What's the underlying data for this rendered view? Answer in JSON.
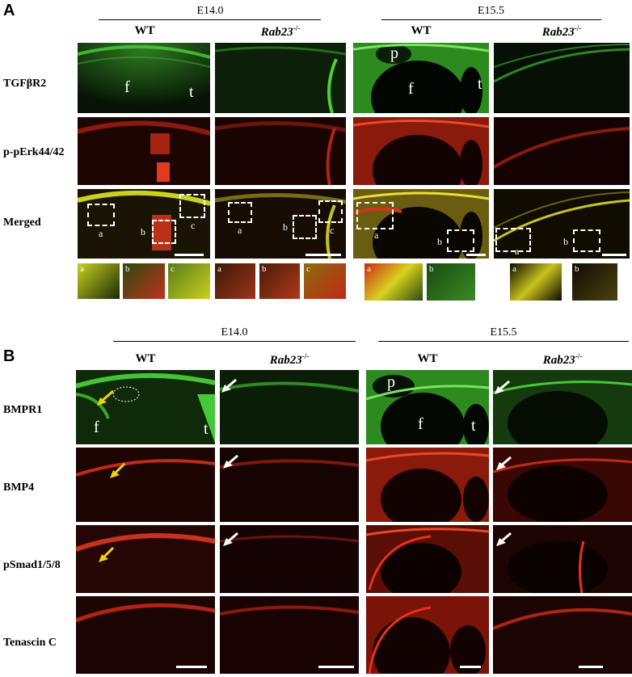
{
  "panelA": {
    "letter": "A",
    "groups": [
      {
        "title": "E14.0"
      },
      {
        "title": "E15.5"
      }
    ],
    "columns": [
      {
        "name": "WT"
      },
      {
        "name": "Rab23",
        "sup": "-/-"
      },
      {
        "name": "WT"
      },
      {
        "name": "Rab23",
        "sup": "-/-"
      }
    ],
    "rows": [
      "TGFβR2",
      "p-pErk44/42",
      "Merged"
    ],
    "tile_labels": {
      "f": "f",
      "t": "t",
      "p": "p"
    },
    "box_labels": {
      "a": "a",
      "b": "b",
      "c": "c"
    }
  },
  "panelB": {
    "letter": "B",
    "groups": [
      {
        "title": "E14.0"
      },
      {
        "title": "E15.5"
      }
    ],
    "columns": [
      {
        "name": "WT"
      },
      {
        "name": "Rab23",
        "sup": "-/-"
      },
      {
        "name": "WT"
      },
      {
        "name": "Rab23",
        "sup": "-/-"
      }
    ],
    "rows": [
      "BMPR1",
      "BMP4",
      "pSmad1/5/8",
      "Tenascin C"
    ],
    "tile_labels": {
      "f": "f",
      "t": "t",
      "p": "p"
    }
  },
  "colors": {
    "green": "#46c83a",
    "red": "#e0281a",
    "yellow": "#f2e21a",
    "white_arrow": "#ffffff",
    "yellow_arrow": "#f3d10a"
  }
}
